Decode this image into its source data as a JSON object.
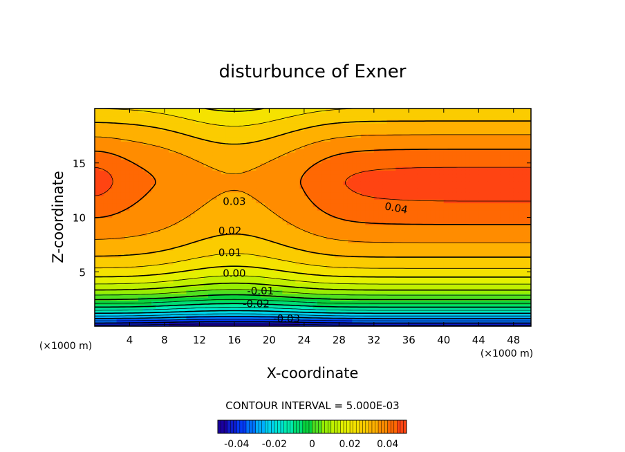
{
  "chart_data": {
    "type": "contour",
    "title": "disturbunce of Exner",
    "xlabel": "X-coordinate",
    "ylabel": "Z-coordinate",
    "x_unit": "(×1000 m)",
    "y_unit": "(×1000 m)",
    "xlim": [
      0,
      50
    ],
    "ylim": [
      0,
      20
    ],
    "x_ticks": [
      "4",
      "8",
      "12",
      "16",
      "20",
      "24",
      "28",
      "32",
      "36",
      "40",
      "44",
      "48"
    ],
    "y_ticks": [
      "5",
      "10",
      "15"
    ],
    "contour_interval_text": "CONTOUR INTERVAL = 5.000E-03",
    "contour_labels": [
      "0.04",
      "0.03",
      "0.02",
      "0.01",
      "0.00",
      "-0.01",
      "-0.02",
      "-0.03"
    ],
    "value_range": [
      -0.05,
      0.045
    ],
    "field_summary": {
      "min_value": -0.04,
      "min_location": [
        17,
        0.5
      ],
      "max_value": 0.043,
      "max_regions": [
        "left edge z≈13",
        "x 30–50 z≈10–16"
      ],
      "saddle_location": [
        16,
        15
      ]
    },
    "colorbar": {
      "range": [
        -0.05,
        0.05
      ],
      "ticks": [
        "-0.04",
        "-0.02",
        "0",
        "0.02",
        "0.04"
      ],
      "colormap": [
        "#1a00a0",
        "#0040ff",
        "#00c8ff",
        "#00f0c0",
        "#00d040",
        "#a0f000",
        "#f0f000",
        "#ffc000",
        "#ff7000",
        "#ff2020"
      ]
    }
  }
}
